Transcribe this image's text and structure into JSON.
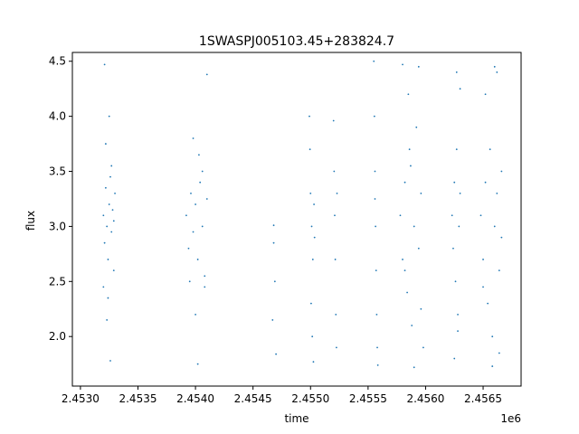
{
  "chart_data": {
    "type": "scatter",
    "title": "1SWASPJ005103.45+283824.7",
    "xlabel": "time",
    "ylabel": "flux",
    "x_offset_label": "1e6",
    "x_scale_factor": 1000000,
    "xlim": [
      2452930,
      2456830
    ],
    "ylim": [
      1.55,
      4.58
    ],
    "xticks": [
      {
        "value": 2453000,
        "label": "2.4530"
      },
      {
        "value": 2453500,
        "label": "2.4535"
      },
      {
        "value": 2454000,
        "label": "2.4540"
      },
      {
        "value": 2454500,
        "label": "2.4545"
      },
      {
        "value": 2455000,
        "label": "2.4550"
      },
      {
        "value": 2455500,
        "label": "2.4555"
      },
      {
        "value": 2456000,
        "label": "2.4560"
      },
      {
        "value": 2456500,
        "label": "2.4565"
      }
    ],
    "yticks": [
      {
        "value": 2.0,
        "label": "2.0"
      },
      {
        "value": 2.5,
        "label": "2.5"
      },
      {
        "value": 3.0,
        "label": "3.0"
      },
      {
        "value": 3.5,
        "label": "3.5"
      },
      {
        "value": 4.0,
        "label": "4.0"
      },
      {
        "value": 4.5,
        "label": "4.5"
      }
    ],
    "grid": false,
    "marker_color": "#1f77b4",
    "series": [
      {
        "points": [
          {
            "x": 2453200,
            "y": 3.1
          },
          {
            "x": 2453210,
            "y": 2.85
          },
          {
            "x": 2453220,
            "y": 3.35
          },
          {
            "x": 2453230,
            "y": 3.0
          },
          {
            "x": 2453240,
            "y": 2.7
          },
          {
            "x": 2453250,
            "y": 3.2
          },
          {
            "x": 2453260,
            "y": 3.45
          },
          {
            "x": 2453270,
            "y": 2.95
          },
          {
            "x": 2453280,
            "y": 3.15
          },
          {
            "x": 2453290,
            "y": 2.6
          },
          {
            "x": 2453300,
            "y": 3.3
          },
          {
            "x": 2453220,
            "y": 3.75
          },
          {
            "x": 2453250,
            "y": 4.0
          },
          {
            "x": 2453240,
            "y": 2.35
          },
          {
            "x": 2453210,
            "y": 4.47
          },
          {
            "x": 2453260,
            "y": 1.78
          },
          {
            "x": 2453230,
            "y": 2.15
          },
          {
            "x": 2453270,
            "y": 3.55
          },
          {
            "x": 2453200,
            "y": 2.45
          },
          {
            "x": 2453290,
            "y": 3.05
          },
          {
            "x": 2453920,
            "y": 3.1
          },
          {
            "x": 2453940,
            "y": 2.8
          },
          {
            "x": 2453960,
            "y": 3.3
          },
          {
            "x": 2453980,
            "y": 2.95
          },
          {
            "x": 2454000,
            "y": 3.2
          },
          {
            "x": 2454020,
            "y": 2.7
          },
          {
            "x": 2454040,
            "y": 3.4
          },
          {
            "x": 2454060,
            "y": 3.0
          },
          {
            "x": 2454080,
            "y": 2.55
          },
          {
            "x": 2454100,
            "y": 3.25
          },
          {
            "x": 2453980,
            "y": 3.8
          },
          {
            "x": 2454030,
            "y": 3.65
          },
          {
            "x": 2454100,
            "y": 4.38
          },
          {
            "x": 2454000,
            "y": 2.2
          },
          {
            "x": 2454020,
            "y": 1.75
          },
          {
            "x": 2453950,
            "y": 2.5
          },
          {
            "x": 2454060,
            "y": 3.5
          },
          {
            "x": 2454080,
            "y": 2.45
          },
          {
            "x": 2454680,
            "y": 3.01
          },
          {
            "x": 2454690,
            "y": 2.5
          },
          {
            "x": 2454670,
            "y": 2.15
          },
          {
            "x": 2454700,
            "y": 1.84
          },
          {
            "x": 2454680,
            "y": 2.85
          },
          {
            "x": 2454990,
            "y": 4.0
          },
          {
            "x": 2454995,
            "y": 3.7
          },
          {
            "x": 2455000,
            "y": 3.3
          },
          {
            "x": 2455010,
            "y": 3.0
          },
          {
            "x": 2455020,
            "y": 2.7
          },
          {
            "x": 2455005,
            "y": 2.3
          },
          {
            "x": 2455015,
            "y": 2.0
          },
          {
            "x": 2455025,
            "y": 1.77
          },
          {
            "x": 2455030,
            "y": 3.2
          },
          {
            "x": 2455035,
            "y": 2.9
          },
          {
            "x": 2455200,
            "y": 3.96
          },
          {
            "x": 2455205,
            "y": 3.5
          },
          {
            "x": 2455210,
            "y": 3.1
          },
          {
            "x": 2455215,
            "y": 2.7
          },
          {
            "x": 2455220,
            "y": 2.2
          },
          {
            "x": 2455225,
            "y": 1.9
          },
          {
            "x": 2455230,
            "y": 3.3
          },
          {
            "x": 2455550,
            "y": 4.5
          },
          {
            "x": 2455555,
            "y": 4.0
          },
          {
            "x": 2455560,
            "y": 3.5
          },
          {
            "x": 2455565,
            "y": 3.0
          },
          {
            "x": 2455570,
            "y": 2.6
          },
          {
            "x": 2455575,
            "y": 2.2
          },
          {
            "x": 2455580,
            "y": 1.9
          },
          {
            "x": 2455585,
            "y": 1.74
          },
          {
            "x": 2455560,
            "y": 3.25
          },
          {
            "x": 2455780,
            "y": 3.1
          },
          {
            "x": 2455800,
            "y": 2.7
          },
          {
            "x": 2455820,
            "y": 3.4
          },
          {
            "x": 2455840,
            "y": 2.4
          },
          {
            "x": 2455860,
            "y": 3.7
          },
          {
            "x": 2455880,
            "y": 2.1
          },
          {
            "x": 2455900,
            "y": 3.0
          },
          {
            "x": 2455920,
            "y": 3.9
          },
          {
            "x": 2455940,
            "y": 2.8
          },
          {
            "x": 2455960,
            "y": 3.3
          },
          {
            "x": 2455980,
            "y": 1.9
          },
          {
            "x": 2455800,
            "y": 4.47
          },
          {
            "x": 2455850,
            "y": 4.2
          },
          {
            "x": 2455900,
            "y": 1.72
          },
          {
            "x": 2455940,
            "y": 4.45
          },
          {
            "x": 2455820,
            "y": 2.6
          },
          {
            "x": 2455870,
            "y": 3.55
          },
          {
            "x": 2455960,
            "y": 2.25
          },
          {
            "x": 2456230,
            "y": 3.1
          },
          {
            "x": 2456240,
            "y": 2.8
          },
          {
            "x": 2456250,
            "y": 3.4
          },
          {
            "x": 2456260,
            "y": 2.5
          },
          {
            "x": 2456270,
            "y": 3.7
          },
          {
            "x": 2456280,
            "y": 2.2
          },
          {
            "x": 2456290,
            "y": 3.0
          },
          {
            "x": 2456300,
            "y": 3.3
          },
          {
            "x": 2456270,
            "y": 4.4
          },
          {
            "x": 2456300,
            "y": 4.25
          },
          {
            "x": 2456250,
            "y": 1.8
          },
          {
            "x": 2456280,
            "y": 2.05
          },
          {
            "x": 2456480,
            "y": 3.1
          },
          {
            "x": 2456500,
            "y": 2.7
          },
          {
            "x": 2456520,
            "y": 3.4
          },
          {
            "x": 2456540,
            "y": 2.3
          },
          {
            "x": 2456560,
            "y": 3.7
          },
          {
            "x": 2456580,
            "y": 2.0
          },
          {
            "x": 2456600,
            "y": 3.0
          },
          {
            "x": 2456620,
            "y": 3.3
          },
          {
            "x": 2456640,
            "y": 2.6
          },
          {
            "x": 2456660,
            "y": 3.5
          },
          {
            "x": 2456600,
            "y": 4.45
          },
          {
            "x": 2456620,
            "y": 4.4
          },
          {
            "x": 2456520,
            "y": 4.2
          },
          {
            "x": 2456580,
            "y": 1.73
          },
          {
            "x": 2456640,
            "y": 1.85
          },
          {
            "x": 2456500,
            "y": 2.45
          },
          {
            "x": 2456660,
            "y": 2.9
          }
        ]
      }
    ]
  }
}
